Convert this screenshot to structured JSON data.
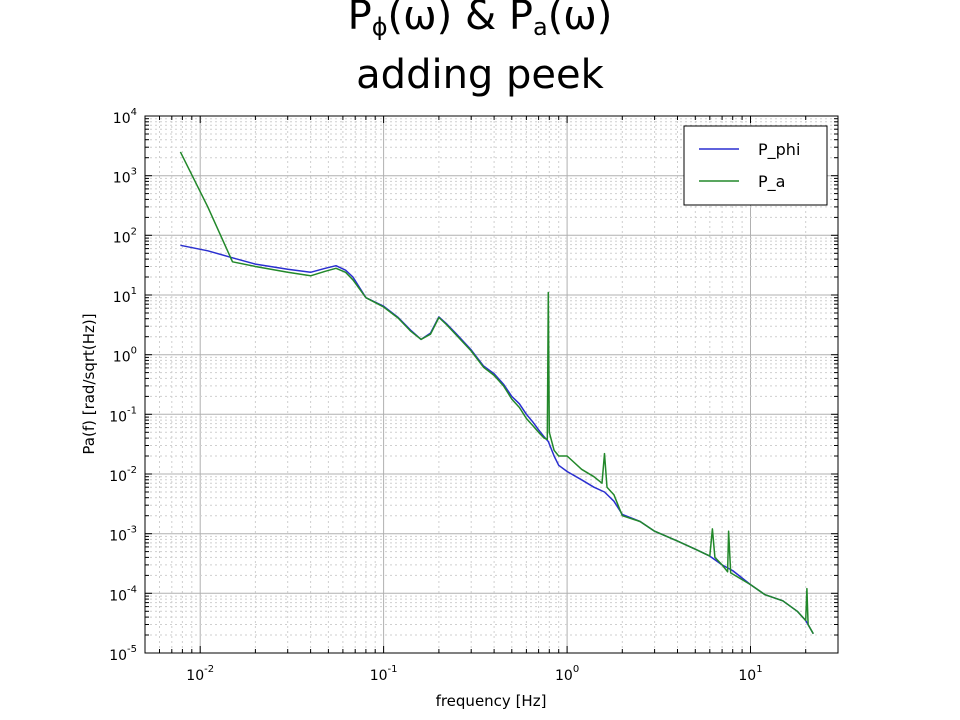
{
  "slide": {
    "title_line1_parts": [
      "P",
      "ϕ",
      "(ω) & P",
      "a",
      "(ω)"
    ],
    "title_line2": "adding peek"
  },
  "chart_data": {
    "type": "line",
    "title": "",
    "xlabel": "frequency [Hz]",
    "ylabel": "Pa(f) [rad/sqrt(Hz)]",
    "x_scale": "log",
    "y_scale": "log",
    "xlim": [
      0.005,
      30
    ],
    "ylim": [
      1e-05,
      10000
    ],
    "x_ticks": [
      {
        "value": 0.01,
        "base": "10",
        "exp": "-2"
      },
      {
        "value": 0.1,
        "base": "10",
        "exp": "-1"
      },
      {
        "value": 1,
        "base": "10",
        "exp": "0"
      },
      {
        "value": 10,
        "base": "10",
        "exp": "1"
      }
    ],
    "y_ticks": [
      {
        "value": 1e-05,
        "base": "10",
        "exp": "-5"
      },
      {
        "value": 0.0001,
        "base": "10",
        "exp": "-4"
      },
      {
        "value": 0.001,
        "base": "10",
        "exp": "-3"
      },
      {
        "value": 0.01,
        "base": "10",
        "exp": "-2"
      },
      {
        "value": 0.1,
        "base": "10",
        "exp": "-1"
      },
      {
        "value": 1,
        "base": "10",
        "exp": "0"
      },
      {
        "value": 10,
        "base": "10",
        "exp": "1"
      },
      {
        "value": 100,
        "base": "10",
        "exp": "2"
      },
      {
        "value": 1000,
        "base": "10",
        "exp": "3"
      },
      {
        "value": 10000,
        "base": "10",
        "exp": "4"
      }
    ],
    "grid": true,
    "legend_position": "top-right",
    "series": [
      {
        "name": "P_phi",
        "color": "#2a2fd0",
        "points": [
          [
            0.0078,
            68
          ],
          [
            0.011,
            55
          ],
          [
            0.015,
            42
          ],
          [
            0.02,
            33
          ],
          [
            0.03,
            27
          ],
          [
            0.04,
            24
          ],
          [
            0.048,
            28
          ],
          [
            0.055,
            31
          ],
          [
            0.062,
            26
          ],
          [
            0.068,
            20
          ],
          [
            0.08,
            9
          ],
          [
            0.1,
            6.5
          ],
          [
            0.12,
            4.2
          ],
          [
            0.14,
            2.6
          ],
          [
            0.16,
            1.8
          ],
          [
            0.18,
            2.3
          ],
          [
            0.2,
            4.3
          ],
          [
            0.22,
            3.3
          ],
          [
            0.25,
            2.2
          ],
          [
            0.3,
            1.2
          ],
          [
            0.35,
            0.65
          ],
          [
            0.4,
            0.48
          ],
          [
            0.45,
            0.32
          ],
          [
            0.5,
            0.2
          ],
          [
            0.55,
            0.15
          ],
          [
            0.6,
            0.1
          ],
          [
            0.65,
            0.075
          ],
          [
            0.7,
            0.055
          ],
          [
            0.75,
            0.042
          ],
          [
            0.79,
            0.035
          ],
          [
            0.85,
            0.02
          ],
          [
            0.9,
            0.014
          ],
          [
            1.0,
            0.011
          ],
          [
            1.2,
            0.008
          ],
          [
            1.4,
            0.006
          ],
          [
            1.6,
            0.005
          ],
          [
            1.8,
            0.0035
          ],
          [
            2.0,
            0.0021
          ],
          [
            2.5,
            0.0016
          ],
          [
            3.0,
            0.0011
          ],
          [
            4.0,
            0.00075
          ],
          [
            5.0,
            0.00055
          ],
          [
            6.0,
            0.00042
          ],
          [
            7.0,
            0.0003
          ],
          [
            8.0,
            0.00024
          ],
          [
            10.0,
            0.00014
          ],
          [
            12.0,
            9.5e-05
          ],
          [
            15.0,
            7.5e-05
          ],
          [
            18.0,
            5e-05
          ],
          [
            20.0,
            3.5e-05
          ],
          [
            22.0,
            2.1e-05
          ]
        ]
      },
      {
        "name": "P_a",
        "color": "#22882a",
        "points": [
          [
            0.0078,
            2500
          ],
          [
            0.011,
            300
          ],
          [
            0.015,
            36
          ],
          [
            0.02,
            30
          ],
          [
            0.03,
            24
          ],
          [
            0.04,
            21
          ],
          [
            0.048,
            25
          ],
          [
            0.055,
            28
          ],
          [
            0.062,
            24
          ],
          [
            0.068,
            18
          ],
          [
            0.08,
            9
          ],
          [
            0.1,
            6.3
          ],
          [
            0.12,
            4.1
          ],
          [
            0.14,
            2.5
          ],
          [
            0.16,
            1.8
          ],
          [
            0.18,
            2.2
          ],
          [
            0.2,
            4.2
          ],
          [
            0.22,
            3.2
          ],
          [
            0.25,
            2.1
          ],
          [
            0.3,
            1.15
          ],
          [
            0.35,
            0.62
          ],
          [
            0.4,
            0.45
          ],
          [
            0.45,
            0.3
          ],
          [
            0.5,
            0.18
          ],
          [
            0.55,
            0.13
          ],
          [
            0.6,
            0.085
          ],
          [
            0.65,
            0.065
          ],
          [
            0.7,
            0.05
          ],
          [
            0.75,
            0.04
          ],
          [
            0.78,
            0.038
          ],
          [
            0.79,
            11
          ],
          [
            0.8,
            0.05
          ],
          [
            0.85,
            0.025
          ],
          [
            0.9,
            0.02
          ],
          [
            1.0,
            0.02
          ],
          [
            1.2,
            0.012
          ],
          [
            1.4,
            0.009
          ],
          [
            1.55,
            0.007
          ],
          [
            1.6,
            0.022
          ],
          [
            1.65,
            0.006
          ],
          [
            1.8,
            0.0045
          ],
          [
            2.0,
            0.002
          ],
          [
            2.5,
            0.0016
          ],
          [
            3.0,
            0.0011
          ],
          [
            4.0,
            0.00075
          ],
          [
            5.0,
            0.00055
          ],
          [
            6.0,
            0.00042
          ],
          [
            6.2,
            0.0012
          ],
          [
            6.4,
            0.0004
          ],
          [
            7.0,
            0.0003
          ],
          [
            7.5,
            0.00023
          ],
          [
            7.6,
            0.0011
          ],
          [
            7.8,
            0.00022
          ],
          [
            10.0,
            0.00014
          ],
          [
            12.0,
            9.5e-05
          ],
          [
            15.0,
            7.5e-05
          ],
          [
            18.0,
            5e-05
          ],
          [
            20.0,
            3.5e-05
          ],
          [
            20.3,
            0.00012
          ],
          [
            20.6,
            3e-05
          ],
          [
            22.0,
            2.1e-05
          ]
        ]
      }
    ]
  }
}
